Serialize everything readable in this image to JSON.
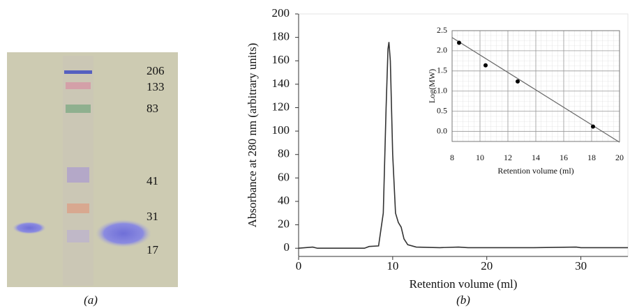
{
  "gel": {
    "markers": [
      206,
      133,
      83,
      41,
      31,
      17
    ],
    "caption": "(a)"
  },
  "chart_data": [
    {
      "type": "line",
      "caption": "(b)",
      "xlabel": "Retention volume (ml)",
      "ylabel": "Absorbance at 280 nm (arbitrary units)",
      "color": "#333333",
      "x": [
        0,
        1.5,
        2,
        7,
        7.5,
        8.5,
        9.0,
        9.3,
        9.5,
        9.6,
        9.75,
        10.0,
        10.3,
        10.6,
        10.9,
        11.2,
        11.6,
        12.5,
        15,
        17,
        18,
        20,
        25,
        29.5,
        30,
        35
      ],
      "values": [
        0,
        1,
        0,
        0,
        1.5,
        2,
        30,
        120,
        170,
        176,
        160,
        80,
        30,
        22,
        18,
        8,
        3,
        1,
        0.5,
        1,
        0.5,
        0.5,
        0.5,
        1,
        0.5,
        0.5
      ],
      "xlim": [
        0,
        35
      ],
      "ylim": [
        -7,
        200
      ],
      "xticks": [
        0,
        10,
        20,
        30
      ],
      "yticks": [
        0,
        20,
        40,
        60,
        80,
        100,
        120,
        140,
        160,
        180,
        200
      ]
    },
    {
      "type": "scatter",
      "xlabel": "Retention volume (ml)",
      "ylabel": "Log(MW)",
      "color": "#000000",
      "grid": true,
      "x": [
        8.5,
        10.4,
        12.7,
        18.1
      ],
      "values": [
        2.2,
        1.64,
        1.24,
        0.12
      ],
      "fit": {
        "x": [
          8,
          20
        ],
        "values": [
          2.33,
          -0.27
        ],
        "color": "#666666"
      },
      "xlim": [
        8,
        20
      ],
      "ylim": [
        -0.25,
        2.5
      ],
      "xticks": [
        8,
        10,
        12,
        14,
        16,
        18,
        20
      ],
      "yticks": [
        {
          "value": 0,
          "label": "0.0"
        },
        0.5,
        {
          "value": 1,
          "label": "1.0"
        },
        1.5,
        {
          "value": 2,
          "label": "2.0"
        },
        2.5
      ]
    }
  ]
}
